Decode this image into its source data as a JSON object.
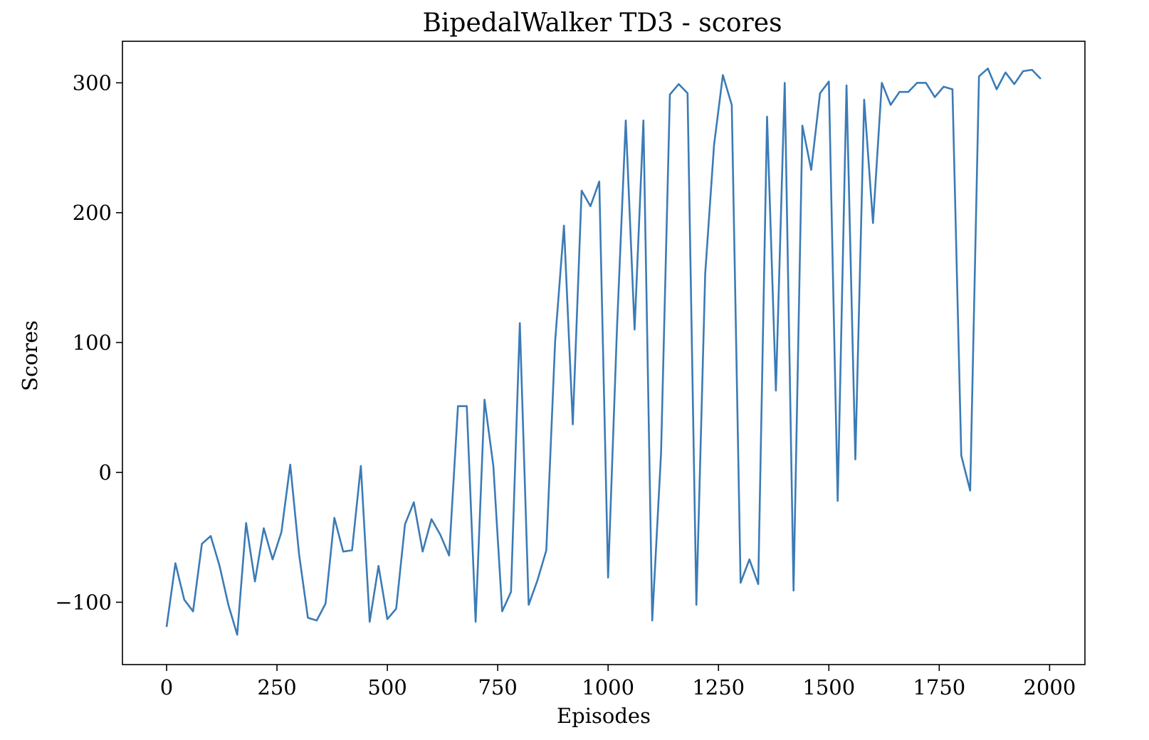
{
  "chart_data": {
    "type": "line",
    "title": "BipedalWalker TD3 - scores",
    "xlabel": "Episodes",
    "ylabel": "Scores",
    "xlim": [
      -100,
      2080
    ],
    "ylim": [
      -148,
      332
    ],
    "xticks": [
      {
        "value": 0,
        "label": "0"
      },
      {
        "value": 250,
        "label": "250"
      },
      {
        "value": 500,
        "label": "500"
      },
      {
        "value": 750,
        "label": "750"
      },
      {
        "value": 1000,
        "label": "1000"
      },
      {
        "value": 1250,
        "label": "1250"
      },
      {
        "value": 1500,
        "label": "1500"
      },
      {
        "value": 1750,
        "label": "1750"
      },
      {
        "value": 2000,
        "label": "2000"
      }
    ],
    "yticks": [
      {
        "value": -100,
        "label": "−100"
      },
      {
        "value": 0,
        "label": "0"
      },
      {
        "value": 100,
        "label": "100"
      },
      {
        "value": 200,
        "label": "200"
      },
      {
        "value": 300,
        "label": "300"
      }
    ],
    "grid": false,
    "line_color": "#3b7bb6",
    "series": [
      {
        "x": [
          0,
          20,
          40,
          60,
          80,
          100,
          120,
          140,
          160,
          180,
          200,
          220,
          240,
          260,
          280,
          300,
          320,
          340,
          360,
          380,
          400,
          420,
          440,
          460,
          480,
          500,
          520,
          540,
          560,
          580,
          600,
          620,
          640,
          660,
          680,
          700,
          720,
          740,
          760,
          780,
          800,
          820,
          840,
          860,
          880,
          900,
          920,
          940,
          960,
          980,
          1000,
          1020,
          1040,
          1060,
          1080,
          1100,
          1120,
          1140,
          1160,
          1180,
          1200,
          1220,
          1240,
          1260,
          1280,
          1300,
          1320,
          1340,
          1360,
          1380,
          1400,
          1420,
          1440,
          1460,
          1480,
          1500,
          1520,
          1540,
          1560,
          1580,
          1600,
          1620,
          1640,
          1660,
          1680,
          1700,
          1720,
          1740,
          1760,
          1780,
          1800,
          1820,
          1840,
          1860,
          1880,
          1900,
          1920,
          1940,
          1960,
          1980
        ],
        "values": [
          -119,
          -70,
          -98,
          -107,
          -55,
          -49,
          -72,
          -102,
          -125,
          -39,
          -84,
          -43,
          -67,
          -46,
          6,
          -63,
          -112,
          -114,
          -101,
          -35,
          -61,
          -60,
          5,
          -115,
          -72,
          -113,
          -105,
          -40,
          -23,
          -61,
          -36,
          -48,
          -64,
          51,
          51,
          -115,
          56,
          5,
          -107,
          -92,
          115,
          -102,
          -83,
          -60,
          101,
          190,
          37,
          217,
          205,
          224,
          -81,
          110,
          271,
          110,
          271,
          -114,
          15,
          291,
          299,
          292,
          -102,
          153,
          252,
          306,
          283,
          -85,
          -67,
          -86,
          274,
          63,
          300,
          -91,
          267,
          233,
          292,
          301,
          -22,
          298,
          10,
          287,
          192,
          300,
          283,
          293,
          293,
          300,
          300,
          289,
          297,
          295,
          13,
          -14,
          305,
          311,
          295,
          308,
          299,
          309,
          310,
          303
        ]
      }
    ]
  }
}
